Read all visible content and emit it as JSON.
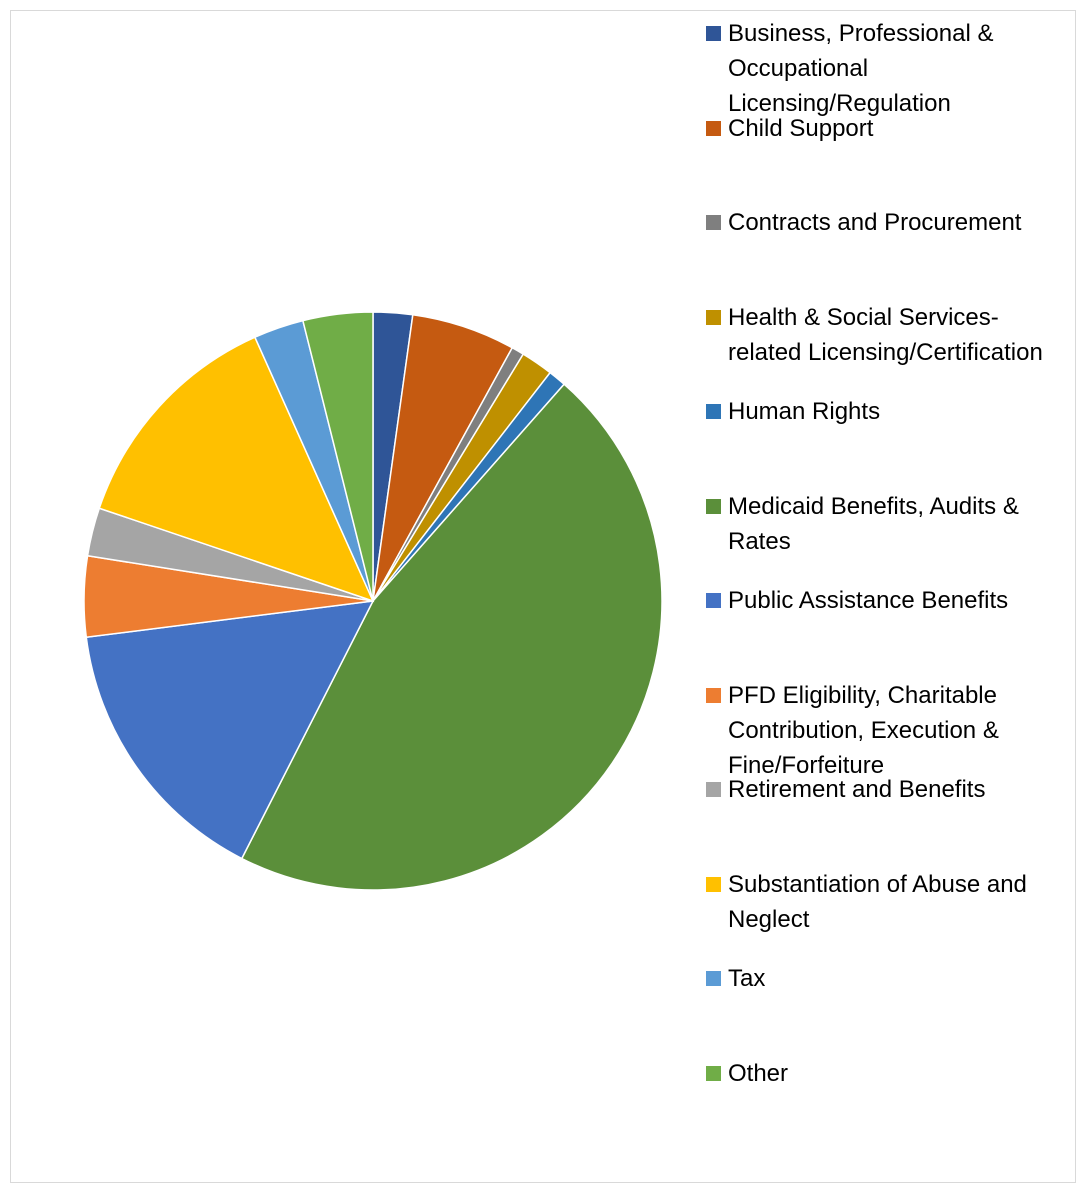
{
  "chart_data": {
    "type": "pie",
    "title": "",
    "start_angle_deg": 0,
    "direction": "clockwise",
    "legend_position": "right",
    "slices": [
      {
        "label": "Business, Professional & Occupational Licensing/Regulation",
        "value": 2.2,
        "color": "#2F5597"
      },
      {
        "label": "Child Support",
        "value": 5.8,
        "color": "#C55A11"
      },
      {
        "label": "Contracts and Procurement",
        "value": 0.7,
        "color": "#7F7F7F"
      },
      {
        "label": "Health & Social Services-related Licensing/Certification",
        "value": 1.8,
        "color": "#BF9000"
      },
      {
        "label": "Human Rights",
        "value": 1.0,
        "color": "#2E75B6"
      },
      {
        "label": "Medicaid Benefits, Audits & Rates",
        "value": 46.0,
        "color": "#5B8F3A"
      },
      {
        "label": "Public Assistance Benefits",
        "value": 15.5,
        "color": "#4472C4"
      },
      {
        "label": "PFD Eligibility, Charitable Contribution, Execution & Fine/Forfeiture",
        "value": 4.5,
        "color": "#ED7D31"
      },
      {
        "label": "Retirement and Benefits",
        "value": 2.7,
        "color": "#A5A5A5"
      },
      {
        "label": "Substantiation of Abuse and Neglect",
        "value": 13.1,
        "color": "#FFC000"
      },
      {
        "label": "Tax",
        "value": 2.8,
        "color": "#5B9BD5"
      },
      {
        "label": "Other",
        "value": 3.9,
        "color": "#70AD47"
      }
    ]
  }
}
